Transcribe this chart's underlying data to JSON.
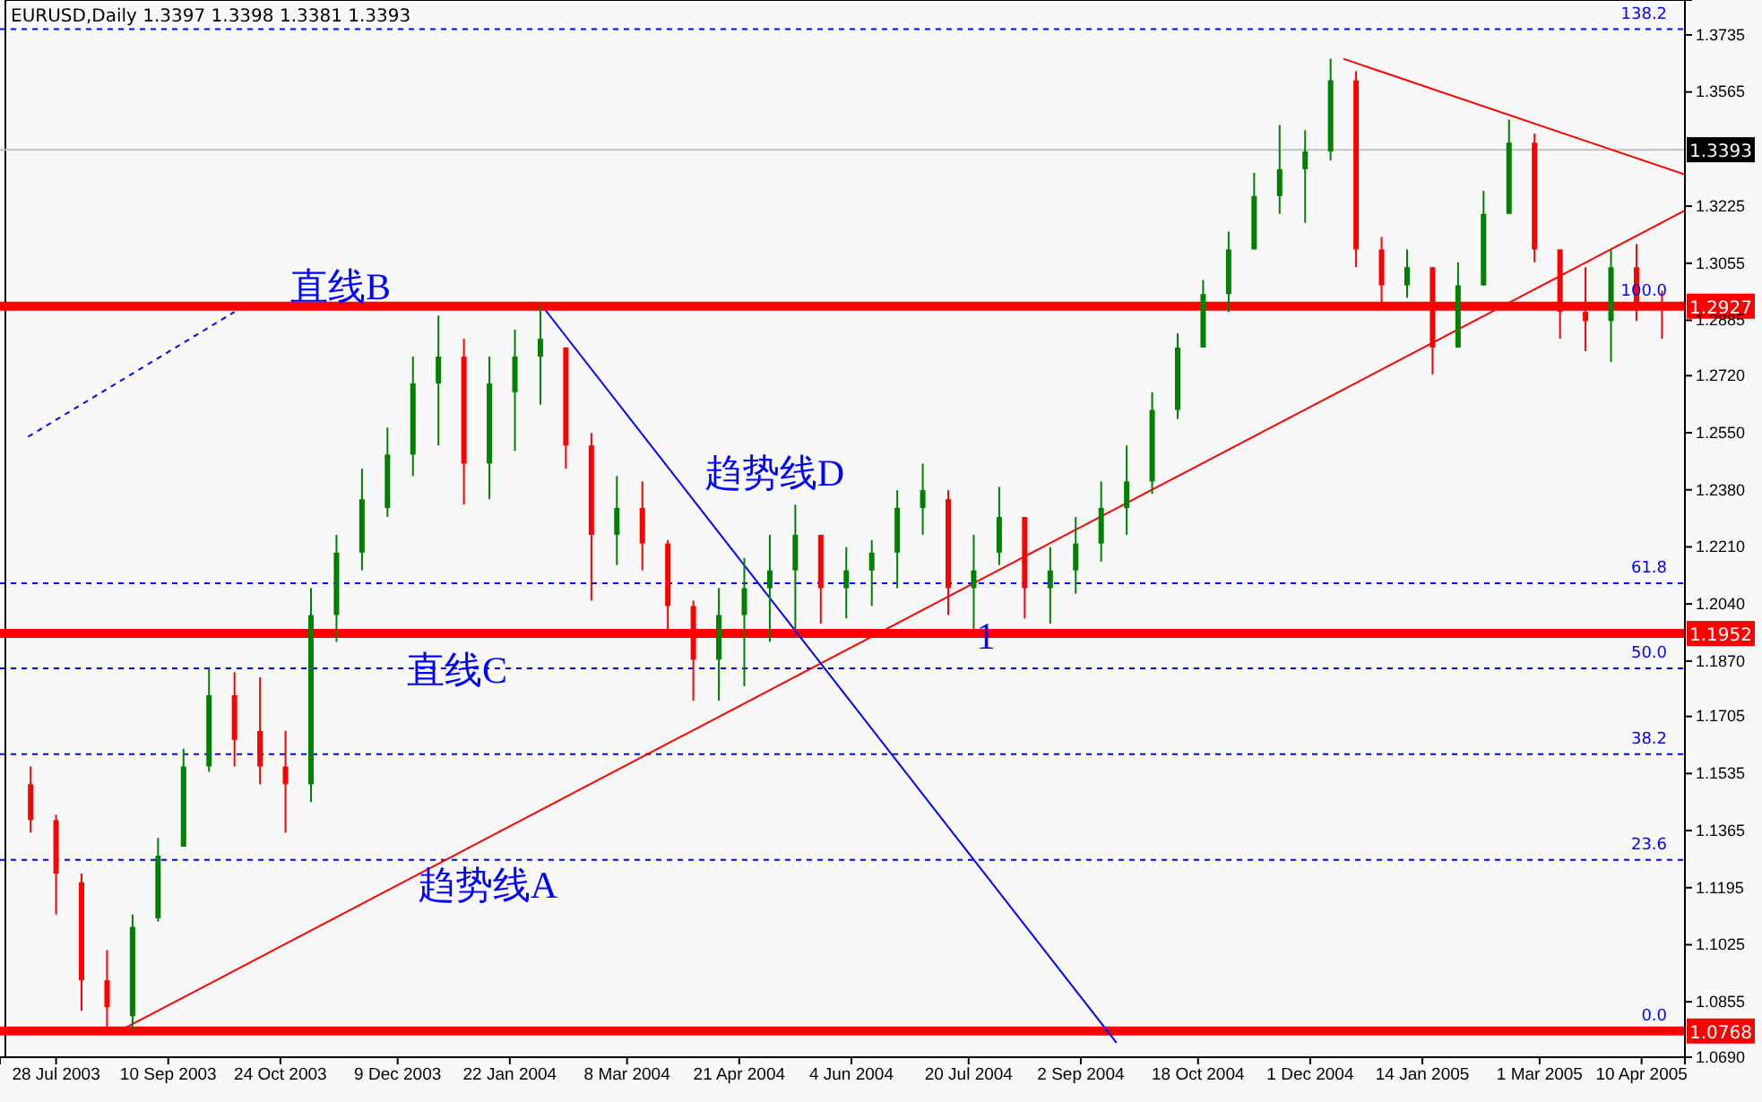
{
  "chart_data": {
    "type": "candlestick",
    "title": "EURUSD,Daily 1.3397 1.3398 1.3381 1.3393",
    "x": [
      "2003-07-18",
      "2003-07-28",
      "2003-08-07",
      "2003-08-17",
      "2003-08-27",
      "2003-09-06",
      "2003-09-16",
      "2003-09-26",
      "2003-10-06",
      "2003-10-16",
      "2003-10-26",
      "2003-11-05",
      "2003-11-15",
      "2003-11-25",
      "2003-12-05",
      "2003-12-15",
      "2003-12-25",
      "2004-01-04",
      "2004-01-14",
      "2004-01-24",
      "2004-02-03",
      "2004-02-13",
      "2004-02-23",
      "2004-03-04",
      "2004-03-14",
      "2004-03-24",
      "2004-04-03",
      "2004-04-13",
      "2004-04-23",
      "2004-05-03",
      "2004-05-13",
      "2004-05-23",
      "2004-06-02",
      "2004-06-12",
      "2004-06-22",
      "2004-07-02",
      "2004-07-12",
      "2004-07-22",
      "2004-08-01",
      "2004-08-11",
      "2004-08-21",
      "2004-08-31",
      "2004-09-10",
      "2004-09-20",
      "2004-09-30",
      "2004-10-10",
      "2004-10-20",
      "2004-10-30",
      "2004-11-09",
      "2004-11-19",
      "2004-11-29",
      "2004-12-09",
      "2004-12-19",
      "2004-12-29",
      "2005-01-08",
      "2005-01-18",
      "2005-01-28",
      "2005-02-07",
      "2005-02-17",
      "2005-02-27",
      "2005-03-09",
      "2005-03-19",
      "2005-03-29",
      "2005-04-08",
      "2005-04-18"
    ],
    "ohlc": [
      [
        1.1503,
        1.1556,
        1.1359,
        1.1396
      ],
      [
        1.1396,
        1.1412,
        1.1115,
        1.1237
      ],
      [
        1.1211,
        1.1237,
        1.0828,
        1.0919
      ],
      [
        1.0919,
        1.1009,
        1.077,
        1.0839
      ],
      [
        1.0812,
        1.1115,
        1.077,
        1.1078
      ],
      [
        1.1104,
        1.1343,
        1.1094,
        1.129
      ],
      [
        1.1317,
        1.1609,
        1.1317,
        1.1556
      ],
      [
        1.1556,
        1.1848,
        1.154,
        1.1768
      ],
      [
        1.1768,
        1.1837,
        1.1556,
        1.1635
      ],
      [
        1.1662,
        1.1821,
        1.1503,
        1.1556
      ],
      [
        1.1556,
        1.1662,
        1.1359,
        1.1503
      ],
      [
        1.1503,
        1.2087,
        1.145,
        1.2007
      ],
      [
        1.2007,
        1.2246,
        1.1927,
        1.2193
      ],
      [
        1.2193,
        1.2443,
        1.214,
        1.2352
      ],
      [
        1.2326,
        1.2565,
        1.2299,
        1.2485
      ],
      [
        1.2485,
        1.2777,
        1.2421,
        1.2697
      ],
      [
        1.2697,
        1.2899,
        1.2512,
        1.2777
      ],
      [
        1.2777,
        1.283,
        1.2336,
        1.2458
      ],
      [
        1.2458,
        1.2777,
        1.2352,
        1.2697
      ],
      [
        1.2671,
        1.2857,
        1.2496,
        1.2777
      ],
      [
        1.2777,
        1.2926,
        1.2634,
        1.283
      ],
      [
        1.2804,
        1.2804,
        1.2443,
        1.2512
      ],
      [
        1.2512,
        1.2549,
        1.205,
        1.2246
      ],
      [
        1.2246,
        1.2421,
        1.2156,
        1.2326
      ],
      [
        1.2326,
        1.2405,
        1.214,
        1.222
      ],
      [
        1.222,
        1.223,
        1.1965,
        1.2034
      ],
      [
        1.2034,
        1.205,
        1.1752,
        1.1874
      ],
      [
        1.1874,
        1.2087,
        1.1752,
        1.2007
      ],
      [
        1.2007,
        1.2177,
        1.1795,
        1.2087
      ],
      [
        1.2087,
        1.2246,
        1.1927,
        1.214
      ],
      [
        1.214,
        1.2336,
        1.1965,
        1.2246
      ],
      [
        1.2246,
        1.2246,
        1.1981,
        1.2087
      ],
      [
        1.2087,
        1.2209,
        1.1997,
        1.214
      ],
      [
        1.214,
        1.223,
        1.2034,
        1.2193
      ],
      [
        1.2193,
        1.2379,
        1.2087,
        1.2326
      ],
      [
        1.2326,
        1.2458,
        1.2246,
        1.2379
      ],
      [
        1.2352,
        1.2379,
        1.2007,
        1.2087
      ],
      [
        1.2087,
        1.2246,
        1.1965,
        1.214
      ],
      [
        1.2193,
        1.2389,
        1.2156,
        1.2299
      ],
      [
        1.2299,
        1.2299,
        1.1997,
        1.2087
      ],
      [
        1.2087,
        1.2209,
        1.1981,
        1.214
      ],
      [
        1.214,
        1.2299,
        1.2071,
        1.222
      ],
      [
        1.222,
        1.2405,
        1.2166,
        1.2326
      ],
      [
        1.2326,
        1.2512,
        1.2246,
        1.2405
      ],
      [
        1.2405,
        1.2671,
        1.2368,
        1.2618
      ],
      [
        1.2618,
        1.2846,
        1.2591,
        1.2804
      ],
      [
        1.2804,
        1.3005,
        1.2804,
        1.2963
      ],
      [
        1.2963,
        1.3149,
        1.291,
        1.3096
      ],
      [
        1.3096,
        1.3324,
        1.3096,
        1.3255
      ],
      [
        1.3255,
        1.3467,
        1.3202,
        1.3335
      ],
      [
        1.3335,
        1.3451,
        1.3175,
        1.3388
      ],
      [
        1.3388,
        1.3664,
        1.3361,
        1.36
      ],
      [
        1.36,
        1.3627,
        1.3043,
        1.3096
      ],
      [
        1.3096,
        1.3133,
        1.292,
        1.2989
      ],
      [
        1.2989,
        1.3096,
        1.2952,
        1.3043
      ],
      [
        1.3043,
        1.3043,
        1.2724,
        1.2804
      ],
      [
        1.2804,
        1.3058,
        1.2804,
        1.2989
      ],
      [
        1.2989,
        1.3271,
        1.2989,
        1.3202
      ],
      [
        1.3202,
        1.3483,
        1.3202,
        1.3414
      ],
      [
        1.3414,
        1.3441,
        1.3058,
        1.3096
      ],
      [
        1.3096,
        1.3096,
        1.283,
        1.291
      ],
      [
        1.291,
        1.3043,
        1.2793,
        1.2883
      ],
      [
        1.2883,
        1.3096,
        1.2761,
        1.3043
      ],
      [
        1.3043,
        1.3112,
        1.2883,
        1.2936
      ],
      [
        1.2936,
        1.2973,
        1.283,
        1.2926
      ]
    ],
    "colors": [
      "#ff0000",
      "#ff0000",
      "#ff0000",
      "#ff0000",
      "#008000",
      "#008000",
      "#008000",
      "#008000",
      "#ff0000",
      "#ff0000",
      "#ff0000",
      "#008000",
      "#008000",
      "#008000",
      "#008000",
      "#008000",
      "#008000",
      "#ff0000",
      "#008000",
      "#008000",
      "#008000",
      "#ff0000",
      "#ff0000",
      "#008000",
      "#ff0000",
      "#ff0000",
      "#ff0000",
      "#008000",
      "#008000",
      "#008000",
      "#008000",
      "#ff0000",
      "#008000",
      "#008000",
      "#008000",
      "#008000",
      "#ff0000",
      "#008000",
      "#008000",
      "#ff0000",
      "#008000",
      "#008000",
      "#008000",
      "#008000",
      "#008000",
      "#008000",
      "#008000",
      "#008000",
      "#008000",
      "#008000",
      "#008000",
      "#008000",
      "#ff0000",
      "#ff0000",
      "#008000",
      "#ff0000",
      "#008000",
      "#008000",
      "#008000",
      "#ff0000",
      "#ff0000",
      "#ff0000",
      "#008000",
      "#ff0000",
      "#ff0000"
    ],
    "series": [
      {
        "type": "line",
        "x": [
          "2003-08-21",
          "2005-04-27"
        ],
        "values": [
          1.0765,
          1.3212
        ],
        "color": "#ff0000",
        "line_style": "solid"
      },
      {
        "type": "line",
        "x": [
          "2004-02-05",
          "2004-09-16"
        ],
        "values": [
          1.2915,
          1.0733
        ],
        "color": "#0000ff",
        "line_style": "solid"
      },
      {
        "type": "line",
        "x": [
          "2004-12-14",
          "2005-04-27"
        ],
        "values": [
          1.3664,
          1.3319
        ],
        "color": "#ff0000",
        "line_style": "solid"
      },
      {
        "type": "line",
        "x": [
          "2003-07-17",
          "2003-10-06"
        ],
        "values": [
          1.2538,
          1.291
        ],
        "color": "#0000ff",
        "line_style": "dashed"
      }
    ],
    "xlim": [
      "2003-07-06",
      "2005-04-27"
    ],
    "xticks": [
      {
        "value": "2003-07-28",
        "label": "28 Jul 2003"
      },
      {
        "value": "2003-09-10",
        "label": "10 Sep 2003"
      },
      {
        "value": "2003-10-24",
        "label": "24 Oct 2003"
      },
      {
        "value": "2003-12-09",
        "label": "9 Dec 2003"
      },
      {
        "value": "2004-01-22",
        "label": "22 Jan 2004"
      },
      {
        "value": "2004-03-08",
        "label": "8 Mar 2004"
      },
      {
        "value": "2004-04-21",
        "label": "21 Apr 2004"
      },
      {
        "value": "2004-06-04",
        "label": "4 Jun 2004"
      },
      {
        "value": "2004-07-20",
        "label": "20 Jul 2004"
      },
      {
        "value": "2004-09-02",
        "label": "2 Sep 2004"
      },
      {
        "value": "2004-10-18",
        "label": "18 Oct 2004"
      },
      {
        "value": "2004-12-01",
        "label": "1 Dec 2004"
      },
      {
        "value": "2005-01-14",
        "label": "14 Jan 2005"
      },
      {
        "value": "2005-03-01",
        "label": "1 Mar 2005"
      },
      {
        "value": "2005-04-10",
        "label": "10 Apr 2005"
      }
    ],
    "ylim": [
      1.069,
      1.3839
    ],
    "yticks": [
      1.3735,
      1.3565,
      1.3225,
      1.3055,
      1.2885,
      {
        "value": 1.272,
        "label": "1.2720"
      },
      {
        "value": 1.255,
        "label": "1.2550"
      },
      {
        "value": 1.238,
        "label": "1.2380"
      },
      {
        "value": 1.221,
        "label": "1.2210"
      },
      {
        "value": 1.204,
        "label": "1.2040"
      },
      {
        "value": 1.187,
        "label": "1.1870"
      },
      1.1705,
      1.1535,
      1.1365,
      1.1195,
      1.1025,
      1.0855,
      {
        "value": 1.069,
        "label": "1.0690"
      }
    ],
    "ref_lines": [
      {
        "axis": "y",
        "value": 1.3752,
        "color": "#0000ff",
        "line_style": "dashed"
      },
      {
        "axis": "y",
        "value": 1.3393,
        "label": "1.3393",
        "color": "#c0c0c0",
        "line_style": "solid"
      },
      {
        "axis": "y",
        "value": 1.2927,
        "label": "1.2927",
        "color": "#ff0000",
        "line_style": "solid"
      },
      {
        "axis": "y",
        "value": 1.2102,
        "color": "#0000ff",
        "line_style": "dashed"
      },
      {
        "axis": "y",
        "value": 1.1952,
        "label": "1.1952",
        "color": "#ff0000",
        "line_style": "solid"
      },
      {
        "axis": "y",
        "value": 1.1848,
        "color": "#0000ff",
        "line_style": "dashed"
      },
      {
        "axis": "y",
        "value": 1.1593,
        "color": "#0000ff",
        "line_style": "dashed"
      },
      {
        "axis": "y",
        "value": 1.1278,
        "color": "#0000ff",
        "line_style": "dashed"
      },
      {
        "axis": "y",
        "value": 1.0768,
        "label": "1.0768",
        "color": "#ff0000",
        "line_style": "solid"
      }
    ],
    "annotations": [
      "直线B",
      "趋势线D",
      "直线C",
      "趋势线A",
      "1",
      {
        "text": "138.2",
        "x": "2005-04-20",
        "y": 1.3752
      },
      {
        "text": "100.0",
        "x": "2005-04-20",
        "y": 1.2927
      },
      {
        "text": "61.8",
        "x": "2005-04-20",
        "y": 1.2102
      },
      {
        "text": "50.0",
        "x": "2005-04-20",
        "y": 1.1848
      },
      {
        "text": "38.2",
        "x": "2005-04-20",
        "y": 1.1593
      },
      {
        "text": "23.6",
        "x": "2005-04-20",
        "y": 1.1278
      },
      {
        "text": "0.0",
        "x": "2005-04-20",
        "y": 1.0768
      }
    ]
  }
}
